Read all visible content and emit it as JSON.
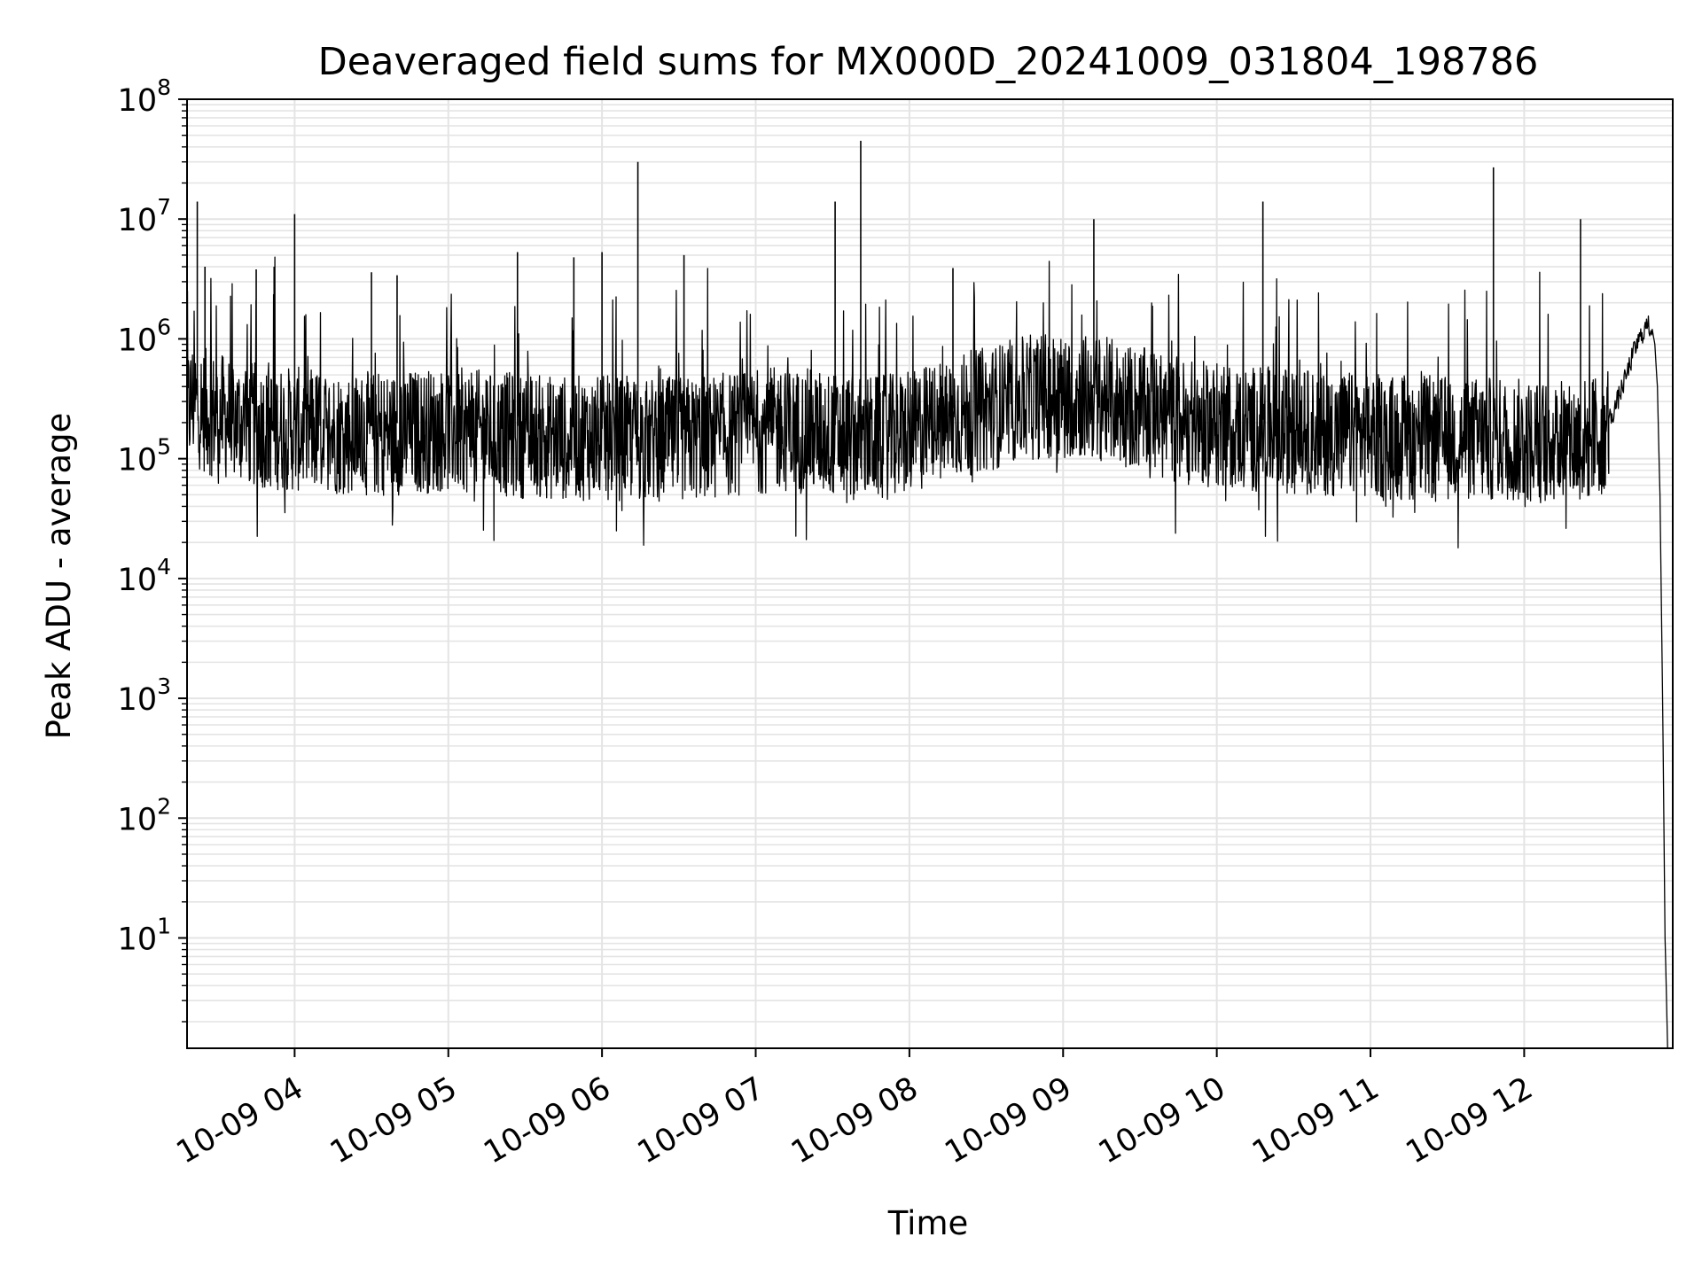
{
  "chart_data": {
    "type": "line",
    "title": "Deaveraged field sums for MX000D_20241009_031804_198786",
    "xlabel": "Time",
    "ylabel": "Peak ADU - average",
    "yscale": "log",
    "ylim": [
      1.2,
      100000000
    ],
    "xlim": [
      "2024-10-09 03:18",
      "2024-10-09 12:58"
    ],
    "x_tick_labels": [
      "10-09 04",
      "10-09 05",
      "10-09 06",
      "10-09 07",
      "10-09 08",
      "10-09 09",
      "10-09 10",
      "10-09 11",
      "10-09 12"
    ],
    "y_ticks": [
      {
        "value": 10,
        "base": "10",
        "exp": "1"
      },
      {
        "value": 100,
        "base": "10",
        "exp": "2"
      },
      {
        "value": 1000,
        "base": "10",
        "exp": "3"
      },
      {
        "value": 10000,
        "base": "10",
        "exp": "4"
      },
      {
        "value": 100000,
        "base": "10",
        "exp": "5"
      },
      {
        "value": 1000000,
        "base": "10",
        "exp": "6"
      },
      {
        "value": 10000000,
        "base": "10",
        "exp": "7"
      },
      {
        "value": 100000000,
        "base": "10",
        "exp": "8"
      }
    ],
    "grid": true,
    "line_color": "#000000",
    "grid_color": "#e4e4e4",
    "series": [
      {
        "x": [
          "03:18",
          "03:20",
          "03:22",
          "03:24",
          "03:27",
          "03:30",
          "03:33",
          "03:37",
          "03:40",
          "03:45",
          "03:50",
          "03:55",
          "04:00",
          "04:10",
          "04:20",
          "04:30",
          "04:40",
          "04:50",
          "05:00",
          "05:10",
          "05:20",
          "05:30",
          "05:40",
          "05:50",
          "06:00",
          "06:10",
          "06:20",
          "06:30",
          "06:40",
          "06:50",
          "07:00",
          "07:10",
          "07:20",
          "07:30",
          "07:40",
          "07:50",
          "08:00",
          "08:10",
          "08:20",
          "08:30",
          "08:40",
          "08:50",
          "09:00",
          "09:10",
          "09:20",
          "09:30",
          "09:40",
          "09:50",
          "10:00",
          "10:10",
          "10:20",
          "10:30",
          "10:40",
          "10:50",
          "11:00",
          "11:10",
          "11:20",
          "11:30",
          "11:40",
          "11:50",
          "12:00",
          "12:10",
          "12:20",
          "12:25",
          "12:30",
          "12:35",
          "12:40",
          "12:43",
          "12:46",
          "12:48",
          "12:50",
          "12:51",
          "12:52",
          "12:53",
          "12:54",
          "12:55",
          "12:56"
        ],
        "values": [
          250000,
          300000,
          280000,
          260000,
          240000,
          230000,
          220000,
          210000,
          200000,
          190000,
          185000,
          180000,
          175000,
          170000,
          165000,
          160000,
          165000,
          170000,
          175000,
          168000,
          160000,
          155000,
          150000,
          150000,
          148000,
          146000,
          145000,
          145000,
          150000,
          160000,
          170000,
          175000,
          170000,
          160000,
          150000,
          150000,
          160000,
          200000,
          230000,
          260000,
          300000,
          330000,
          340000,
          330000,
          300000,
          260000,
          220000,
          200000,
          190000,
          180000,
          175000,
          170000,
          165000,
          160000,
          155000,
          150000,
          150000,
          148000,
          146000,
          145000,
          140000,
          140000,
          140000,
          145000,
          160000,
          250000,
          500000,
          800000,
          1100000,
          1300000,
          1200000,
          900000,
          400000,
          50000,
          1200,
          10,
          1.2
        ],
        "spikes": [
          {
            "x": "03:22",
            "value": 14000000
          },
          {
            "x": "03:25",
            "value": 4000000
          },
          {
            "x": "03:45",
            "value": 3800000
          },
          {
            "x": "03:52",
            "value": 4000000
          },
          {
            "x": "04:00",
            "value": 11000000
          },
          {
            "x": "04:30",
            "value": 3600000
          },
          {
            "x": "04:40",
            "value": 3400000
          },
          {
            "x": "05:27",
            "value": 5300000
          },
          {
            "x": "05:49",
            "value": 4800000
          },
          {
            "x": "06:00",
            "value": 5300000
          },
          {
            "x": "06:14",
            "value": 30000000
          },
          {
            "x": "06:32",
            "value": 5000000
          },
          {
            "x": "07:31",
            "value": 14000000
          },
          {
            "x": "07:41",
            "value": 45000000
          },
          {
            "x": "08:17",
            "value": 3900000
          },
          {
            "x": "09:12",
            "value": 10000000
          },
          {
            "x": "10:18",
            "value": 14000000
          },
          {
            "x": "11:48",
            "value": 27000000
          },
          {
            "x": "12:22",
            "value": 10000000
          }
        ]
      }
    ]
  }
}
